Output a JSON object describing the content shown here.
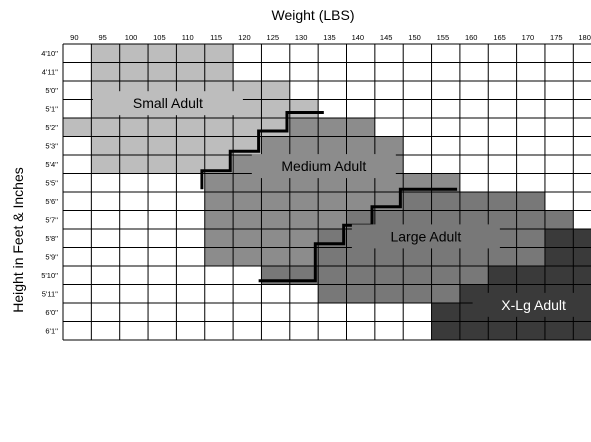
{
  "chart_data": {
    "type": "heatmap",
    "title": "Weight (LBS)",
    "xlabel": "",
    "ylabel": "Height in Feet & Inches",
    "x_ticks": [
      "90",
      "95",
      "100",
      "105",
      "110",
      "115",
      "120",
      "125",
      "130",
      "135",
      "140",
      "145",
      "150",
      "155",
      "160",
      "165",
      "170",
      "175",
      "180"
    ],
    "y_ticks": [
      "4'10''",
      "4'11''",
      "5'0''",
      "5'1''",
      "5'2''",
      "5'3''",
      "5'4''",
      "5'5''",
      "5'6''",
      "5'7''",
      "5'8''",
      "5'9''",
      "5'10''",
      "5'11''",
      "6'0''",
      "6'1''"
    ],
    "grid": true,
    "colors": {
      "none": "#ffffff",
      "small": "#bdbdbd",
      "medium": "#8c8c8c",
      "large": "#787878",
      "xl": "#3a3a3a",
      "grid": "#000000",
      "boundary": "#000000"
    },
    "regions": [
      {
        "key": "small",
        "label": "Small Adult",
        "label_color": "#000000"
      },
      {
        "key": "medium",
        "label": "Medium Adult",
        "label_color": "#000000"
      },
      {
        "key": "large",
        "label": "Large Adult",
        "label_color": "#000000"
      },
      {
        "key": "xl",
        "label": "X-Lg Adult",
        "label_color": "#ffffff"
      }
    ],
    "cells": [
      [
        0,
        1,
        1,
        1,
        1,
        1,
        0,
        0,
        0,
        0,
        0,
        0,
        0,
        0,
        0,
        0,
        0,
        0,
        0
      ],
      [
        0,
        1,
        1,
        1,
        1,
        1,
        0,
        0,
        0,
        0,
        0,
        0,
        0,
        0,
        0,
        0,
        0,
        0,
        0
      ],
      [
        0,
        1,
        1,
        1,
        1,
        1,
        1,
        1,
        0,
        0,
        0,
        0,
        0,
        0,
        0,
        0,
        0,
        0,
        0
      ],
      [
        0,
        1,
        1,
        1,
        1,
        1,
        1,
        1,
        1,
        0,
        0,
        0,
        0,
        0,
        0,
        0,
        0,
        0,
        0
      ],
      [
        1,
        1,
        1,
        1,
        1,
        1,
        1,
        1,
        2,
        2,
        2,
        0,
        0,
        0,
        0,
        0,
        0,
        0,
        0
      ],
      [
        0,
        1,
        1,
        1,
        1,
        1,
        1,
        2,
        2,
        2,
        2,
        2,
        0,
        0,
        0,
        0,
        0,
        0,
        0
      ],
      [
        0,
        1,
        1,
        1,
        1,
        1,
        2,
        2,
        2,
        2,
        2,
        2,
        0,
        0,
        0,
        0,
        0,
        0,
        0
      ],
      [
        0,
        0,
        0,
        0,
        0,
        2,
        2,
        2,
        2,
        2,
        2,
        2,
        2,
        2,
        0,
        0,
        0,
        0,
        0
      ],
      [
        0,
        0,
        0,
        0,
        0,
        2,
        2,
        2,
        2,
        2,
        2,
        2,
        3,
        3,
        3,
        3,
        3,
        0,
        0
      ],
      [
        0,
        0,
        0,
        0,
        0,
        2,
        2,
        2,
        2,
        2,
        3,
        3,
        3,
        3,
        3,
        3,
        3,
        3,
        0
      ],
      [
        0,
        0,
        0,
        0,
        0,
        2,
        2,
        2,
        2,
        3,
        3,
        3,
        3,
        3,
        3,
        3,
        3,
        4,
        4
      ],
      [
        0,
        0,
        0,
        0,
        0,
        2,
        2,
        2,
        2,
        3,
        3,
        3,
        3,
        3,
        3,
        3,
        3,
        4,
        4
      ],
      [
        0,
        0,
        0,
        0,
        0,
        0,
        0,
        3,
        3,
        3,
        3,
        3,
        3,
        3,
        3,
        4,
        4,
        4,
        4
      ],
      [
        0,
        0,
        0,
        0,
        0,
        0,
        0,
        0,
        0,
        3,
        3,
        3,
        3,
        3,
        4,
        4,
        4,
        4,
        4
      ],
      [
        0,
        0,
        0,
        0,
        0,
        0,
        0,
        0,
        0,
        0,
        0,
        0,
        0,
        4,
        4,
        4,
        4,
        4,
        4
      ],
      [
        0,
        0,
        0,
        0,
        0,
        0,
        0,
        0,
        0,
        0,
        0,
        0,
        0,
        4,
        4,
        4,
        4,
        4,
        4
      ]
    ],
    "boundary_small_medium": [
      [
        0,
        7.5
      ],
      [
        5,
        7.5
      ],
      [
        5,
        6.5
      ],
      [
        6,
        6.5
      ],
      [
        6,
        5.5
      ],
      [
        7,
        5.5
      ],
      [
        7,
        4.5
      ],
      [
        8,
        4.5
      ],
      [
        8,
        3.8
      ],
      [
        9,
        3.8
      ]
    ],
    "boundary_medium_large": [
      [
        7,
        12.5
      ],
      [
        7,
        12.5
      ],
      [
        9,
        12.5
      ],
      [
        9,
        10.5
      ],
      [
        10,
        10.5
      ],
      [
        10,
        9.5
      ],
      [
        11,
        9.5
      ],
      [
        11,
        8.5
      ],
      [
        12,
        8.5
      ],
      [
        12,
        7.5
      ],
      [
        14,
        7.5
      ]
    ]
  }
}
